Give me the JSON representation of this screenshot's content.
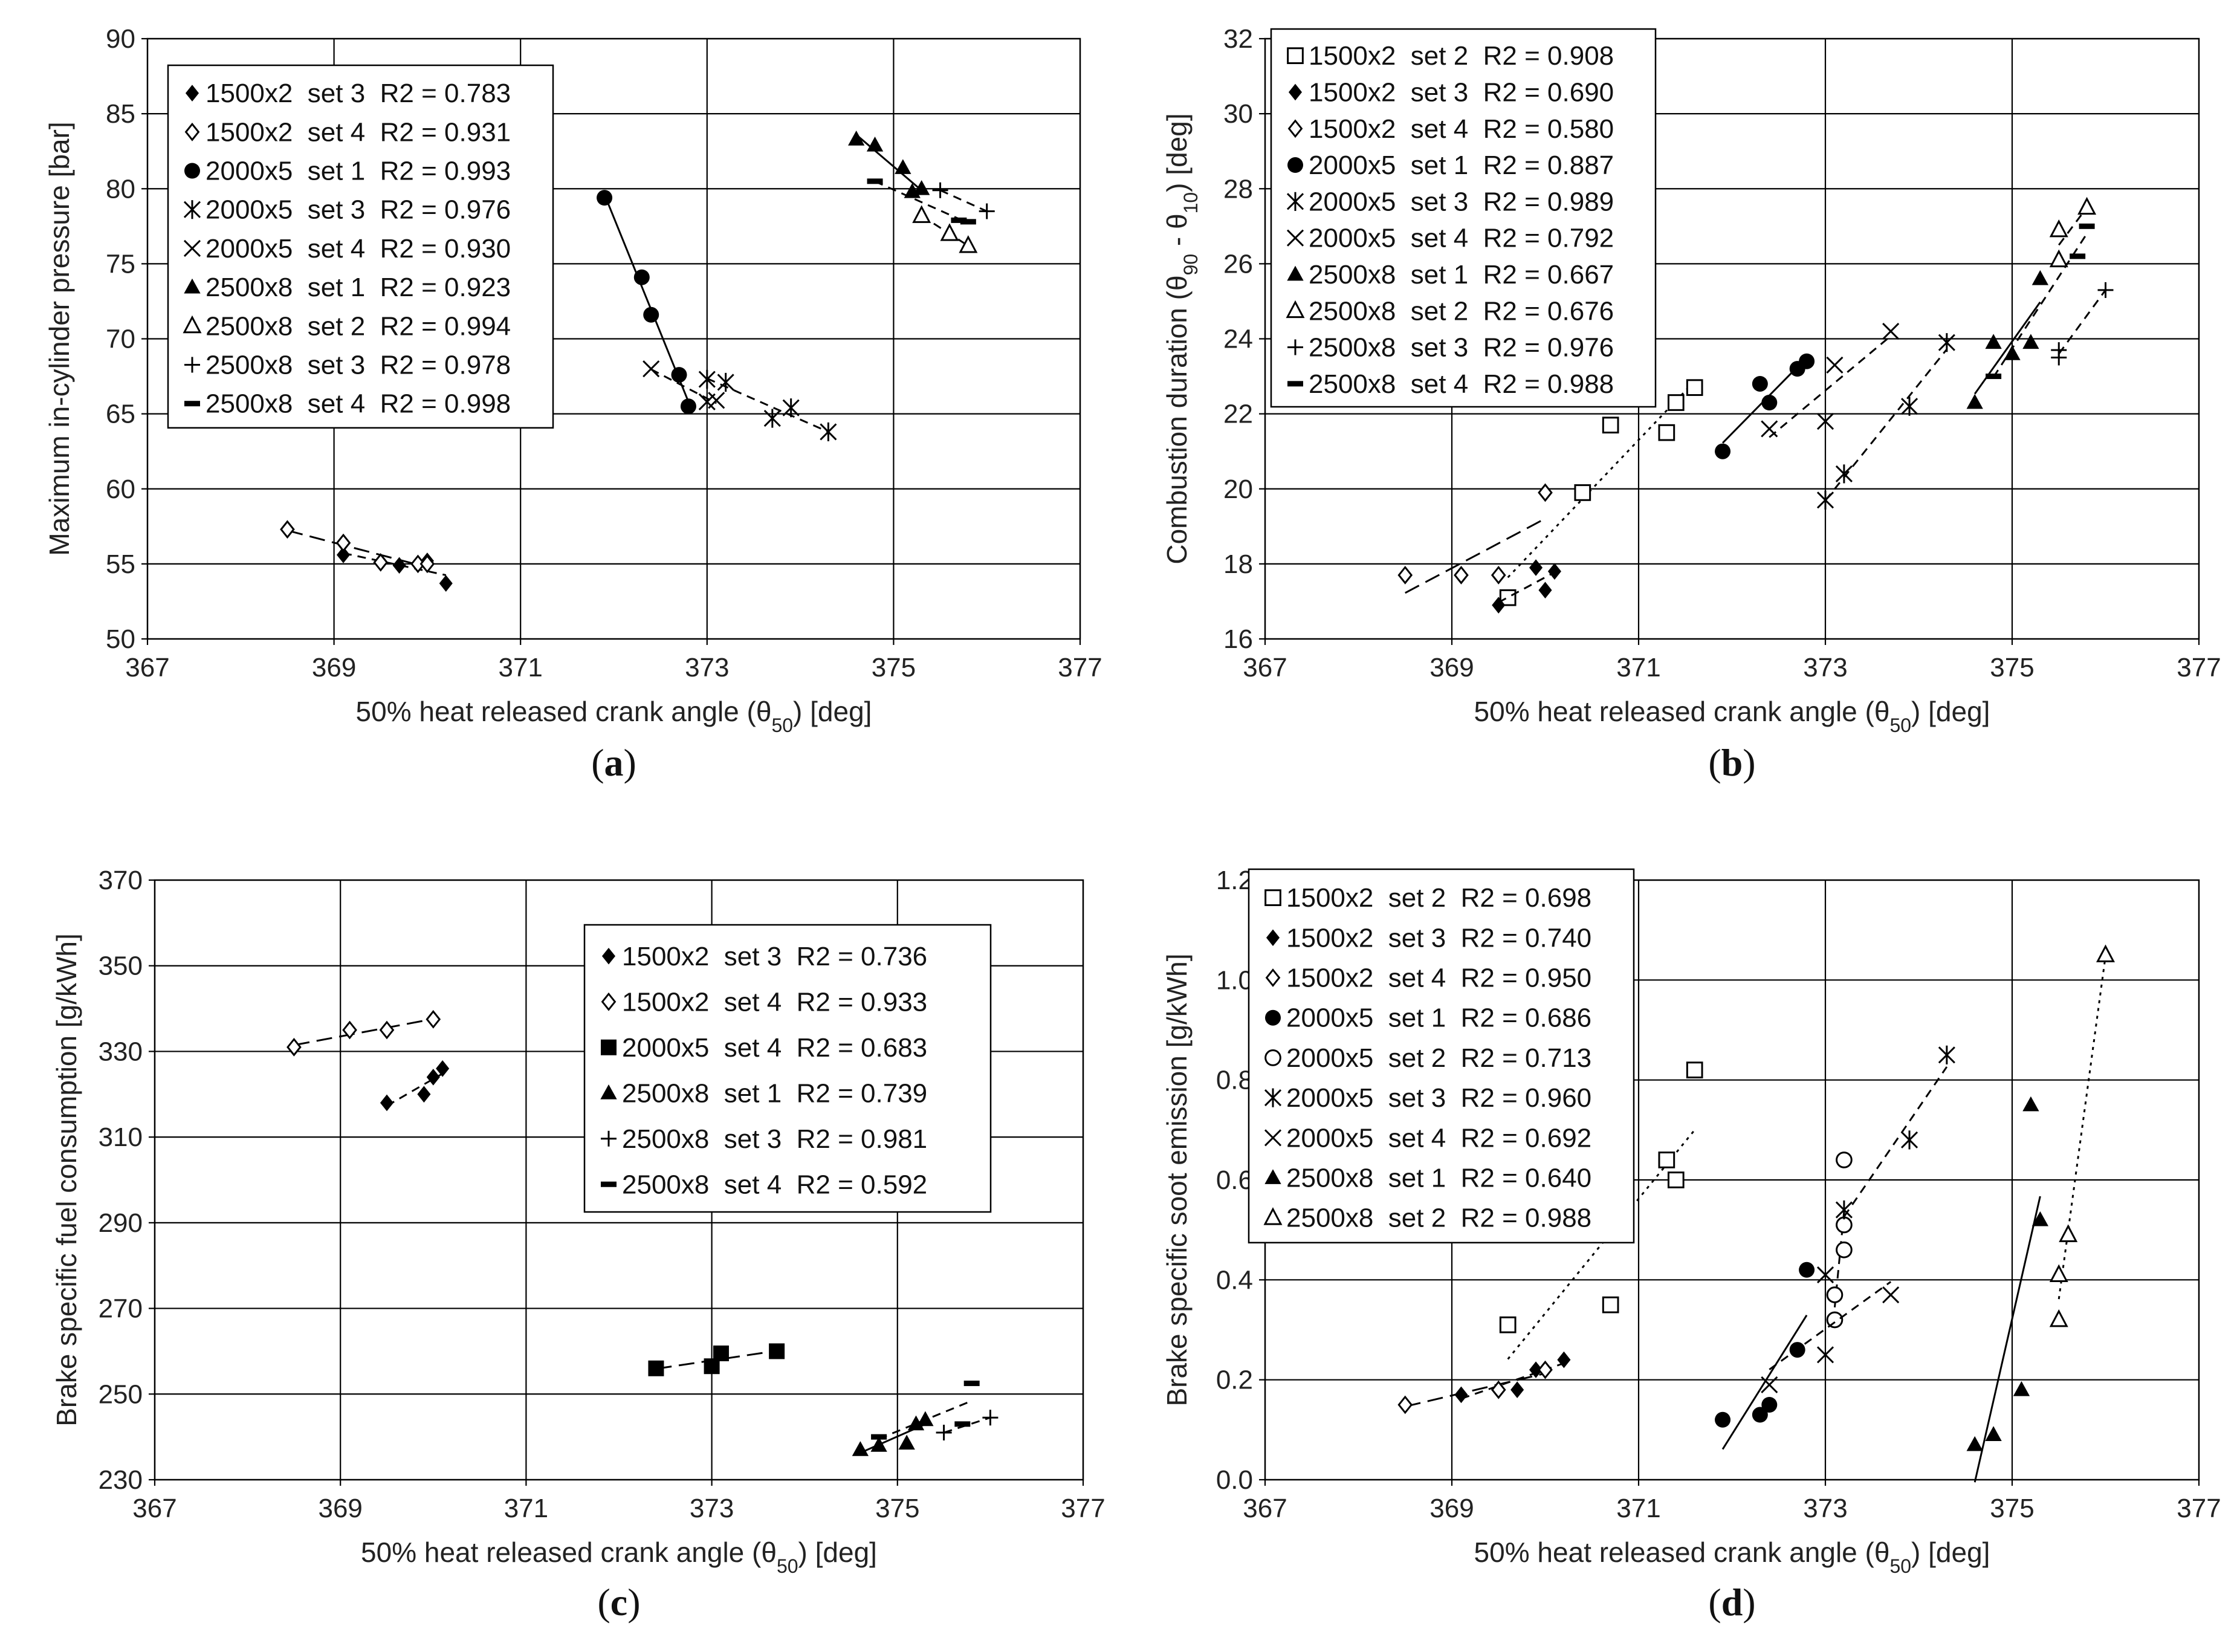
{
  "chart_data": [
    {
      "type": "scatter",
      "panel": "a",
      "panel_label": "(a)",
      "xlabel": "50% heat released crank angle (θ50) [deg]",
      "ylabel": "Maximum in-cylinder pressure [bar]",
      "xlim": [
        367,
        377
      ],
      "ylim": [
        50,
        90
      ],
      "xticks": [
        367,
        369,
        371,
        373,
        375,
        377
      ],
      "yticks": [
        50,
        55,
        60,
        65,
        70,
        75,
        80,
        85,
        90
      ],
      "grid": true,
      "legend_position": "top-left",
      "series": [
        {
          "name": "1500x2  set 3  R2 = 0.783",
          "marker": "diamond-filled",
          "line": "dashed",
          "points": [
            [
              369.1,
              55.6
            ],
            [
              369.7,
              54.9
            ],
            [
              370.0,
              55.2
            ],
            [
              370.2,
              53.7
            ]
          ]
        },
        {
          "name": "1500x2  set 4  R2 = 0.931",
          "marker": "diamond-open",
          "line": "longdash",
          "points": [
            [
              368.5,
              57.3
            ],
            [
              369.1,
              56.4
            ],
            [
              369.5,
              55.1
            ],
            [
              369.9,
              55.0
            ],
            [
              370.0,
              55.0
            ]
          ]
        },
        {
          "name": "2000x5  set 1  R2 = 0.993",
          "marker": "circle-filled",
          "line": "solid",
          "points": [
            [
              371.9,
              79.4
            ],
            [
              372.3,
              74.1
            ],
            [
              372.4,
              71.6
            ],
            [
              372.7,
              67.6
            ],
            [
              372.8,
              65.5
            ]
          ]
        },
        {
          "name": "2000x5  set 3  R2 = 0.976",
          "marker": "asterisk",
          "line": "dashed",
          "points": [
            [
              373.0,
              67.3
            ],
            [
              373.2,
              67.1
            ],
            [
              373.7,
              64.7
            ],
            [
              373.9,
              65.4
            ],
            [
              374.3,
              63.8
            ]
          ]
        },
        {
          "name": "2000x5  set 4  R2 = 0.930",
          "marker": "x",
          "line": "dashed",
          "points": [
            [
              372.4,
              68.0
            ],
            [
              373.0,
              65.8
            ],
            [
              373.1,
              65.9
            ]
          ]
        },
        {
          "name": "2500x8  set 1  R2 = 0.923",
          "marker": "triangle-filled",
          "line": "solid",
          "points": [
            [
              374.6,
              83.3
            ],
            [
              374.8,
              82.9
            ],
            [
              375.1,
              81.4
            ],
            [
              375.2,
              79.8
            ],
            [
              375.3,
              80.0
            ]
          ]
        },
        {
          "name": "2500x8  set 2  R2 = 0.994",
          "marker": "triangle-open",
          "line": "dashed",
          "points": [
            [
              375.3,
              78.2
            ],
            [
              375.6,
              77.0
            ],
            [
              375.8,
              76.2
            ]
          ]
        },
        {
          "name": "2500x8  set 3  R2 = 0.978",
          "marker": "plus",
          "line": "dashed",
          "points": [
            [
              375.5,
              79.9
            ],
            [
              376.0,
              78.5
            ]
          ]
        },
        {
          "name": "2500x8  set 4  R2 = 0.998",
          "marker": "dash",
          "line": "dashed",
          "points": [
            [
              374.8,
              80.5
            ],
            [
              375.7,
              77.9
            ],
            [
              375.8,
              77.8
            ]
          ]
        }
      ]
    },
    {
      "type": "scatter",
      "panel": "b",
      "panel_label": "(b)",
      "xlabel": "50% heat released crank angle (θ50) [deg]",
      "ylabel": "Combustion duration (θ90 - θ10) [deg]",
      "xlim": [
        367,
        377
      ],
      "ylim": [
        16,
        32
      ],
      "xticks": [
        367,
        369,
        371,
        373,
        375,
        377
      ],
      "yticks": [
        16,
        18,
        20,
        22,
        24,
        26,
        28,
        30,
        32
      ],
      "grid": true,
      "legend_position": "top-left",
      "series": [
        {
          "name": "1500x2  set 2  R2 = 0.908",
          "marker": "square-open",
          "line": "dotted",
          "points": [
            [
              369.6,
              17.1
            ],
            [
              370.4,
              19.9
            ],
            [
              370.7,
              21.7
            ],
            [
              371.3,
              21.5
            ],
            [
              371.4,
              22.3
            ],
            [
              371.6,
              22.7
            ]
          ]
        },
        {
          "name": "1500x2  set 3  R2 = 0.690",
          "marker": "diamond-filled",
          "line": "dashed",
          "points": [
            [
              369.5,
              16.9
            ],
            [
              369.9,
              17.9
            ],
            [
              370.0,
              17.3
            ],
            [
              370.1,
              17.8
            ]
          ]
        },
        {
          "name": "1500x2  set 4  R2 = 0.580",
          "marker": "diamond-open",
          "line": "longdash",
          "points": [
            [
              368.5,
              17.7
            ],
            [
              369.1,
              17.7
            ],
            [
              369.5,
              17.7
            ],
            [
              370.0,
              19.9
            ]
          ]
        },
        {
          "name": "2000x5  set 1  R2 = 0.887",
          "marker": "circle-filled",
          "line": "solid",
          "points": [
            [
              371.9,
              21.0
            ],
            [
              372.3,
              22.8
            ],
            [
              372.4,
              22.3
            ],
            [
              372.7,
              23.2
            ],
            [
              372.8,
              23.4
            ]
          ]
        },
        {
          "name": "2000x5  set 3  R2 = 0.989",
          "marker": "asterisk",
          "line": "dashed",
          "points": [
            [
              373.0,
              19.7
            ],
            [
              373.2,
              20.4
            ],
            [
              373.9,
              22.2
            ],
            [
              374.3,
              23.9
            ]
          ]
        },
        {
          "name": "2000x5  set 4  R2 = 0.792",
          "marker": "x",
          "line": "dashed",
          "points": [
            [
              372.4,
              21.6
            ],
            [
              373.0,
              21.8
            ],
            [
              373.1,
              23.3
            ],
            [
              373.7,
              24.2
            ]
          ]
        },
        {
          "name": "2500x8  set 1  R2 = 0.667",
          "marker": "triangle-filled",
          "line": "solid",
          "points": [
            [
              374.6,
              22.3
            ],
            [
              374.8,
              23.9
            ],
            [
              375.0,
              23.6
            ],
            [
              375.2,
              23.9
            ],
            [
              375.3,
              25.6
            ]
          ]
        },
        {
          "name": "2500x8  set 2  R2 = 0.676",
          "marker": "triangle-open",
          "line": "dashed",
          "points": [
            [
              375.5,
              26.1
            ],
            [
              375.5,
              26.9
            ],
            [
              375.8,
              27.5
            ]
          ]
        },
        {
          "name": "2500x8  set 3  R2 = 0.976",
          "marker": "plus",
          "line": "dashed",
          "points": [
            [
              375.5,
              23.5
            ],
            [
              375.5,
              23.7
            ],
            [
              376.0,
              25.3
            ]
          ]
        },
        {
          "name": "2500x8  set 4  R2 = 0.988",
          "marker": "dash",
          "line": "dashed",
          "points": [
            [
              374.8,
              23.0
            ],
            [
              375.7,
              26.2
            ],
            [
              375.8,
              27.0
            ]
          ]
        }
      ]
    },
    {
      "type": "scatter",
      "panel": "c",
      "panel_label": "(c)",
      "xlabel": "50% heat released crank angle (θ50) [deg]",
      "ylabel": "Brake specific fuel consumption [g/kWh]",
      "xlim": [
        367,
        377
      ],
      "ylim": [
        230,
        370
      ],
      "xticks": [
        367,
        369,
        371,
        373,
        375,
        377
      ],
      "yticks": [
        230,
        250,
        270,
        290,
        310,
        330,
        350,
        370
      ],
      "grid": true,
      "legend_position": "top-right",
      "series": [
        {
          "name": "1500x2  set 3  R2 = 0.736",
          "marker": "diamond-filled",
          "line": "dashed",
          "points": [
            [
              369.5,
              318
            ],
            [
              369.9,
              320
            ],
            [
              370.0,
              324
            ],
            [
              370.1,
              326
            ]
          ]
        },
        {
          "name": "1500x2  set 4  R2 = 0.933",
          "marker": "diamond-open",
          "line": "longdash",
          "points": [
            [
              368.5,
              331
            ],
            [
              369.1,
              335
            ],
            [
              369.5,
              335
            ],
            [
              370.0,
              337.5
            ]
          ]
        },
        {
          "name": "2000x5  set 4  R2 = 0.683",
          "marker": "square-filled",
          "line": "longdash",
          "points": [
            [
              372.4,
              256
            ],
            [
              373.0,
              256.5
            ],
            [
              373.1,
              259.5
            ],
            [
              373.7,
              260
            ]
          ]
        },
        {
          "name": "2500x8  set 1  R2 = 0.739",
          "marker": "triangle-filled",
          "line": "solid",
          "points": [
            [
              374.6,
              237
            ],
            [
              374.8,
              238
            ],
            [
              375.1,
              238.5
            ],
            [
              375.2,
              243
            ],
            [
              375.3,
              244
            ]
          ]
        },
        {
          "name": "2500x8  set 3  R2 = 0.981",
          "marker": "plus",
          "line": "dashed",
          "points": [
            [
              375.5,
              241
            ],
            [
              376.0,
              244.5
            ]
          ]
        },
        {
          "name": "2500x8  set 4  R2 = 0.592",
          "marker": "dash",
          "line": "dashed",
          "points": [
            [
              374.8,
              240
            ],
            [
              375.7,
              243
            ],
            [
              375.8,
              252.5
            ]
          ]
        }
      ]
    },
    {
      "type": "scatter",
      "panel": "d",
      "panel_label": "(d)",
      "xlabel": "50% heat released crank angle (θ50) [deg]",
      "ylabel": "Brake specific soot emission [g/kWh]",
      "xlim": [
        367,
        377
      ],
      "ylim": [
        0,
        1.2
      ],
      "xticks": [
        367,
        369,
        371,
        373,
        375,
        377
      ],
      "yticks": [
        0,
        0.2,
        0.4,
        0.6,
        0.8,
        1.0,
        1.2
      ],
      "ytick_labels": [
        "0.0",
        "0.2",
        "0.4",
        "0.6",
        "0.8",
        "1.0",
        "1.2"
      ],
      "grid": true,
      "legend_position": "top-left",
      "series": [
        {
          "name": "1500x2  set 2  R2 = 0.698",
          "marker": "square-open",
          "line": "dotted",
          "points": [
            [
              369.6,
              0.31
            ],
            [
              370.7,
              0.35
            ],
            [
              371.3,
              0.64
            ],
            [
              371.4,
              0.6
            ],
            [
              371.6,
              0.82
            ]
          ]
        },
        {
          "name": "1500x2  set 3  R2 = 0.740",
          "marker": "diamond-filled",
          "line": "dashed",
          "points": [
            [
              369.1,
              0.17
            ],
            [
              369.7,
              0.18
            ],
            [
              369.9,
              0.22
            ],
            [
              370.2,
              0.24
            ]
          ]
        },
        {
          "name": "1500x2  set 4  R2 = 0.950",
          "marker": "diamond-open",
          "line": "longdash",
          "points": [
            [
              368.5,
              0.15
            ],
            [
              369.5,
              0.18
            ],
            [
              370.0,
              0.22
            ]
          ]
        },
        {
          "name": "2000x5  set 1  R2 = 0.686",
          "marker": "circle-filled",
          "line": "solid",
          "points": [
            [
              371.9,
              0.12
            ],
            [
              372.3,
              0.13
            ],
            [
              372.4,
              0.15
            ],
            [
              372.7,
              0.26
            ],
            [
              372.8,
              0.42
            ]
          ]
        },
        {
          "name": "2000x5  set 2  R2 = 0.713",
          "marker": "circle-open",
          "line": "dashed",
          "points": [
            [
              373.1,
              0.32
            ],
            [
              373.1,
              0.37
            ],
            [
              373.2,
              0.46
            ],
            [
              373.2,
              0.51
            ],
            [
              373.2,
              0.64
            ]
          ]
        },
        {
          "name": "2000x5  set 3  R2 = 0.960",
          "marker": "asterisk",
          "line": "dashed",
          "points": [
            [
              373.2,
              0.54
            ],
            [
              373.9,
              0.68
            ],
            [
              374.3,
              0.85
            ]
          ]
        },
        {
          "name": "2000x5  set 4  R2 = 0.692",
          "marker": "x",
          "line": "dashed",
          "points": [
            [
              372.4,
              0.19
            ],
            [
              373.0,
              0.25
            ],
            [
              373.0,
              0.41
            ],
            [
              373.7,
              0.37
            ]
          ]
        },
        {
          "name": "2500x8  set 1  R2 = 0.640",
          "marker": "triangle-filled",
          "line": "solid",
          "points": [
            [
              374.6,
              0.07
            ],
            [
              374.8,
              0.09
            ],
            [
              375.1,
              0.18
            ],
            [
              375.2,
              0.75
            ],
            [
              375.3,
              0.52
            ]
          ]
        },
        {
          "name": "2500x8  set 2  R2 = 0.988",
          "marker": "triangle-open",
          "line": "dotted",
          "points": [
            [
              375.5,
              0.32
            ],
            [
              375.5,
              0.41
            ],
            [
              375.6,
              0.49
            ],
            [
              376.0,
              1.05
            ]
          ]
        }
      ]
    }
  ]
}
